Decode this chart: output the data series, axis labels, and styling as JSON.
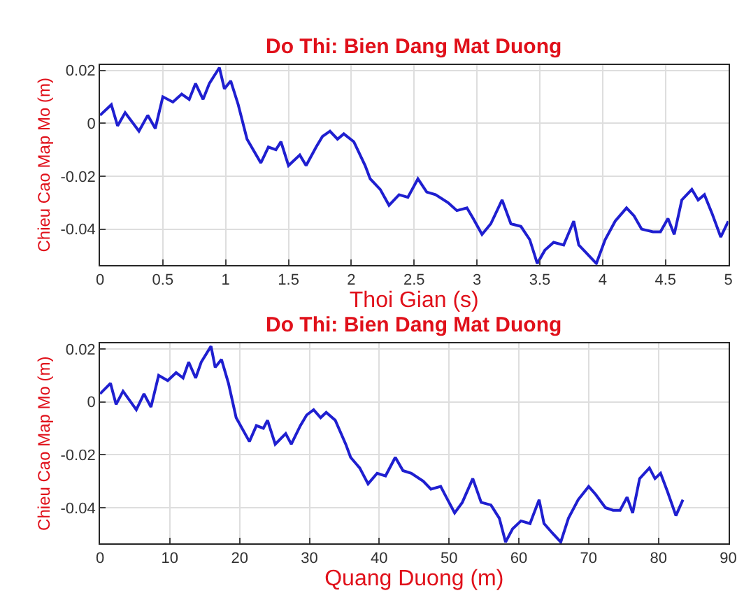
{
  "chart_data": [
    {
      "type": "line",
      "title": "Do Thi: Bien Dang Mat Duong",
      "xlabel": "Thoi Gian (s)",
      "ylabel": "Chieu Cao Map Mo (m)",
      "grid": true,
      "marker": "none",
      "line_style": "solid",
      "xlim": [
        0,
        5
      ],
      "xticks": [
        0,
        0.5,
        1,
        1.5,
        2,
        2.5,
        3,
        3.5,
        4,
        4.5,
        5
      ],
      "ylim": [
        -0.0535,
        0.022
      ],
      "yticks": [
        -0.04,
        -0.02,
        0,
        0.02
      ],
      "series": [
        {
          "color": "#1f1fd0",
          "x": [
            0,
            0.09,
            0.14,
            0.2,
            0.31,
            0.38,
            0.44,
            0.5,
            0.58,
            0.65,
            0.71,
            0.76,
            0.82,
            0.87,
            0.95,
            0.99,
            1.04,
            1.1,
            1.17,
            1.28,
            1.34,
            1.4,
            1.44,
            1.5,
            1.59,
            1.64,
            1.72,
            1.77,
            1.83,
            1.89,
            1.94,
            2.02,
            2.11,
            2.15,
            2.23,
            2.3,
            2.38,
            2.45,
            2.53,
            2.6,
            2.67,
            2.77,
            2.84,
            2.92,
            2.97,
            3.04,
            3.11,
            3.2,
            3.27,
            3.35,
            3.42,
            3.48,
            3.54,
            3.61,
            3.69,
            3.77,
            3.81,
            3.87,
            3.95,
            4.02,
            4.1,
            4.19,
            4.25,
            4.31,
            4.4,
            4.46,
            4.52,
            4.57,
            4.63,
            4.71,
            4.76,
            4.81,
            4.87,
            4.94,
            5
          ],
          "values": [
            0.003,
            0.007,
            -0.001,
            0.004,
            -0.003,
            0.003,
            -0.002,
            0.01,
            0.008,
            0.011,
            0.009,
            0.015,
            0.009,
            0.015,
            0.021,
            0.013,
            0.016,
            0.007,
            -0.006,
            -0.015,
            -0.009,
            -0.01,
            -0.007,
            -0.016,
            -0.012,
            -0.016,
            -0.009,
            -0.005,
            -0.003,
            -0.006,
            -0.004,
            -0.007,
            -0.016,
            -0.021,
            -0.025,
            -0.031,
            -0.027,
            -0.028,
            -0.021,
            -0.026,
            -0.027,
            -0.03,
            -0.033,
            -0.032,
            -0.036,
            -0.042,
            -0.038,
            -0.029,
            -0.038,
            -0.039,
            -0.044,
            -0.053,
            -0.048,
            -0.045,
            -0.046,
            -0.037,
            -0.046,
            -0.049,
            -0.053,
            -0.044,
            -0.037,
            -0.032,
            -0.035,
            -0.04,
            -0.041,
            -0.041,
            -0.036,
            -0.042,
            -0.029,
            -0.025,
            -0.029,
            -0.027,
            -0.034,
            -0.043,
            -0.037
          ]
        }
      ]
    },
    {
      "type": "line",
      "title": "Do Thi: Bien Dang Mat Duong",
      "xlabel": "Quang Duong (m)",
      "ylabel": "Chieu Cao Map Mo (m)",
      "grid": true,
      "marker": "none",
      "line_style": "solid",
      "xlim": [
        0,
        90
      ],
      "xticks": [
        0,
        10,
        20,
        30,
        40,
        50,
        60,
        70,
        80,
        90
      ],
      "ylim": [
        -0.0535,
        0.022
      ],
      "yticks": [
        -0.04,
        -0.02,
        0,
        0.02
      ],
      "series": [
        {
          "color": "#1f1fd0",
          "x": [
            0,
            1.5,
            2.3,
            3.3,
            5.2,
            6.3,
            7.3,
            8.4,
            9.7,
            10.9,
            11.9,
            12.7,
            13.7,
            14.5,
            15.9,
            16.5,
            17.4,
            18.4,
            19.5,
            21.4,
            22.4,
            23.4,
            24.0,
            25.1,
            26.6,
            27.4,
            28.7,
            29.6,
            30.6,
            31.6,
            32.4,
            33.7,
            35.2,
            35.9,
            37.2,
            38.4,
            39.7,
            40.9,
            42.3,
            43.4,
            44.6,
            46.3,
            47.4,
            48.8,
            49.6,
            50.8,
            51.9,
            53.4,
            54.6,
            56.0,
            57.2,
            58.1,
            59.1,
            60.3,
            61.6,
            62.9,
            63.6,
            64.6,
            66.0,
            67.1,
            68.5,
            70.0,
            71.0,
            72.4,
            73.5,
            74.5,
            75.5,
            76.3,
            77.3,
            78.7,
            79.5,
            80.3,
            81.3,
            82.5,
            83.5
          ],
          "values": [
            0.003,
            0.007,
            -0.001,
            0.004,
            -0.003,
            0.003,
            -0.002,
            0.01,
            0.008,
            0.011,
            0.009,
            0.015,
            0.009,
            0.015,
            0.021,
            0.013,
            0.016,
            0.007,
            -0.006,
            -0.015,
            -0.009,
            -0.01,
            -0.007,
            -0.016,
            -0.012,
            -0.016,
            -0.009,
            -0.005,
            -0.003,
            -0.006,
            -0.004,
            -0.007,
            -0.016,
            -0.021,
            -0.025,
            -0.031,
            -0.027,
            -0.028,
            -0.021,
            -0.026,
            -0.027,
            -0.03,
            -0.033,
            -0.032,
            -0.036,
            -0.042,
            -0.038,
            -0.029,
            -0.038,
            -0.039,
            -0.044,
            -0.053,
            -0.048,
            -0.045,
            -0.046,
            -0.037,
            -0.046,
            -0.049,
            -0.053,
            -0.044,
            -0.037,
            -0.032,
            -0.035,
            -0.04,
            -0.041,
            -0.041,
            -0.036,
            -0.042,
            -0.029,
            -0.025,
            -0.029,
            -0.027,
            -0.034,
            -0.043,
            -0.037
          ]
        }
      ]
    }
  ]
}
